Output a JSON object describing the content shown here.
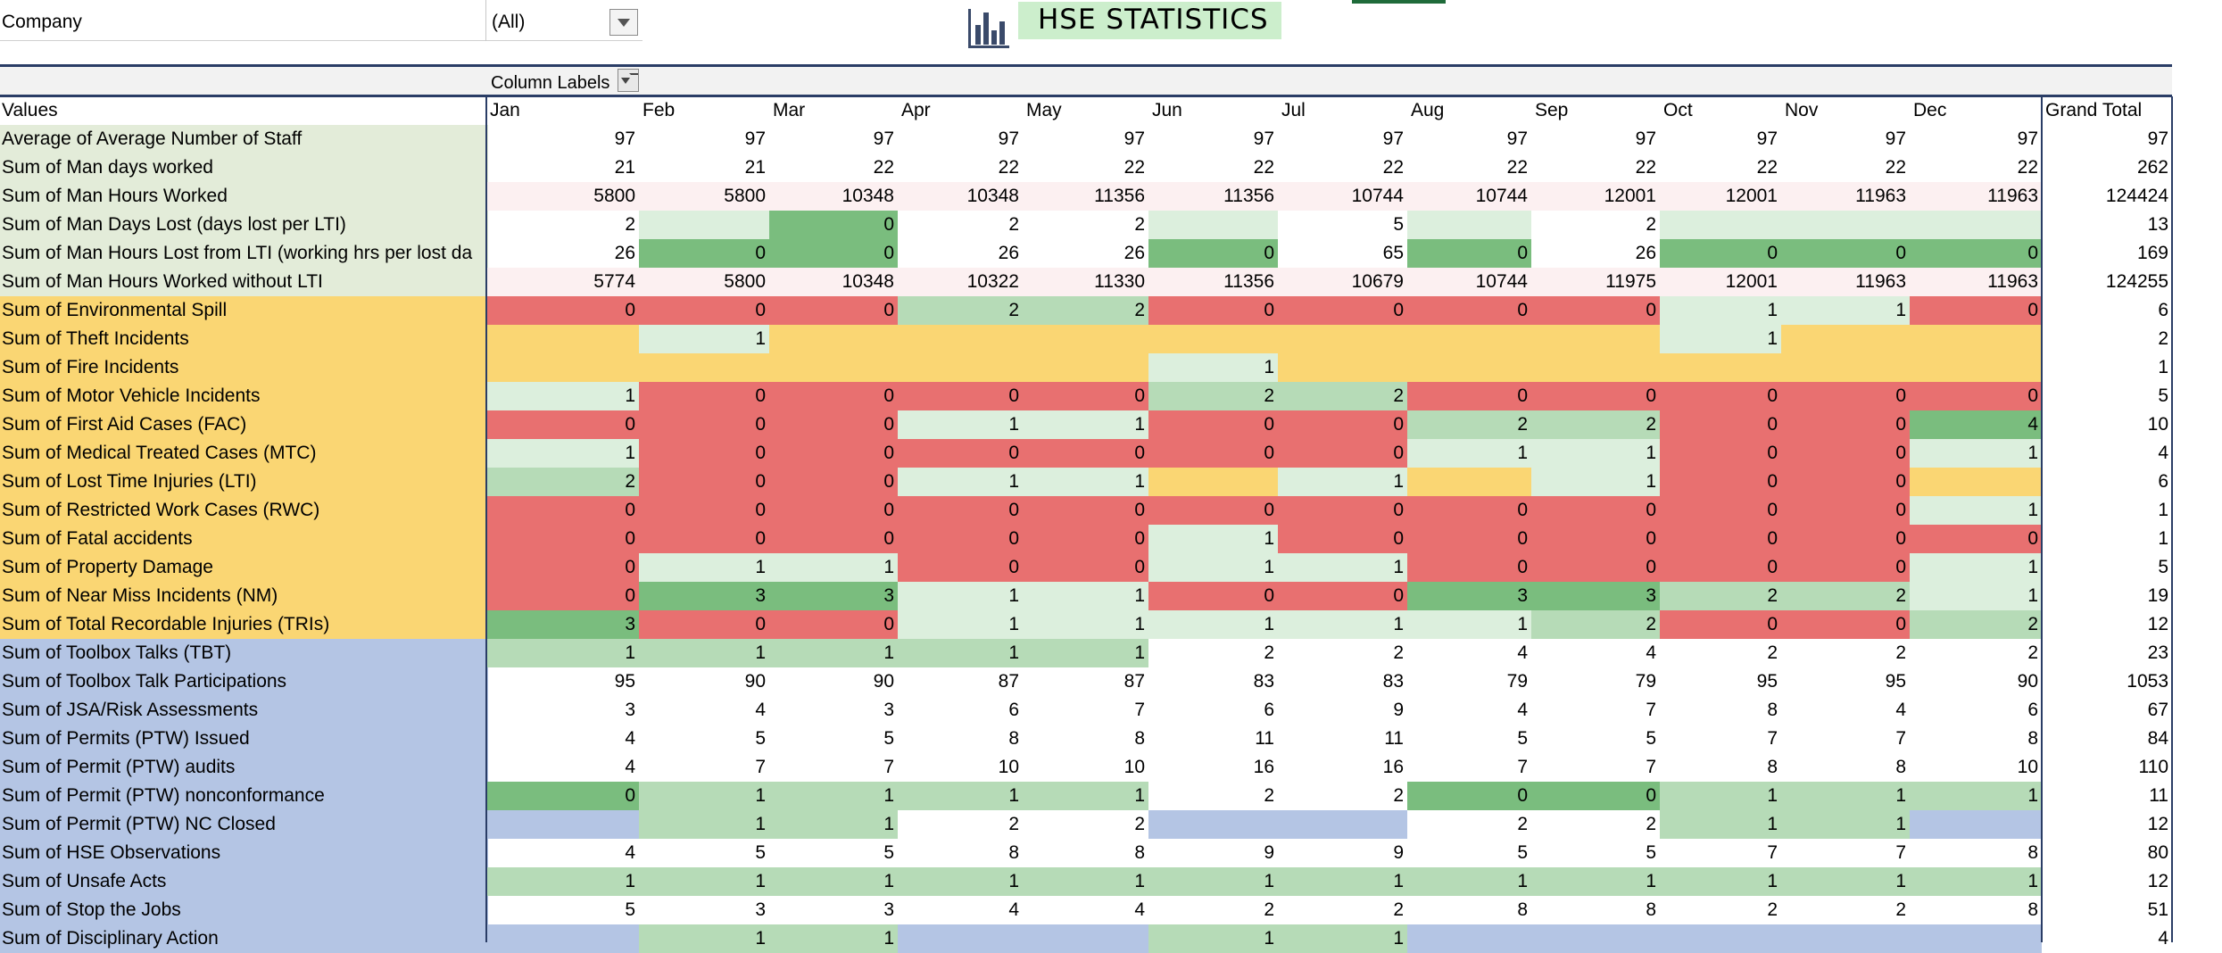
{
  "filter": {
    "label": "Company",
    "value": "(All)"
  },
  "title": "HSE STATISTICS",
  "column_labels": "Column Labels",
  "values_header": "Values",
  "months": [
    "Jan",
    "Feb",
    "Mar",
    "Apr",
    "May",
    "Jun",
    "Jul",
    "Aug",
    "Sep",
    "Oct",
    "Nov",
    "Dec"
  ],
  "grand_total_header": "Grand Total",
  "colors": {
    "green_dark": "#7abd7e",
    "green_mid": "#b6dbb7",
    "green_light": "#dcefdd",
    "red": "#e87070",
    "yellow": "#fad673",
    "blue": "#b4c5e4",
    "pink": "#fcf0f1",
    "lightgreen_label": "#e3ecd9"
  },
  "rows": [
    {
      "label": "Average of Average Number of Staff",
      "group": "green",
      "values": [
        "97",
        "97",
        "97",
        "97",
        "97",
        "97",
        "97",
        "97",
        "97",
        "97",
        "97",
        "97"
      ],
      "colors": [
        "",
        "",
        "",
        "",
        "",
        "",
        "",
        "",
        "",
        "",
        "",
        ""
      ],
      "total": "97"
    },
    {
      "label": "Sum of Man days worked",
      "group": "green",
      "values": [
        "21",
        "21",
        "22",
        "22",
        "22",
        "22",
        "22",
        "22",
        "22",
        "22",
        "22",
        "22"
      ],
      "colors": [
        "",
        "",
        "",
        "",
        "",
        "",
        "",
        "",
        "",
        "",
        "",
        ""
      ],
      "total": "262"
    },
    {
      "label": "Sum of Man Hours Worked",
      "group": "green",
      "values": [
        "5800",
        "5800",
        "10348",
        "10348",
        "11356",
        "11356",
        "10744",
        "10744",
        "12001",
        "12001",
        "11963",
        "11963"
      ],
      "colors": [
        "pink",
        "pink",
        "pink",
        "pink",
        "pink",
        "pink",
        "pink",
        "pink",
        "pink",
        "pink",
        "pink",
        "pink"
      ],
      "total": "124424"
    },
    {
      "label": "Sum of Man Days Lost (days lost per LTI)",
      "group": "green",
      "values": [
        "2",
        "",
        "0",
        "2",
        "2",
        "",
        "5",
        "",
        "2",
        "",
        "",
        ""
      ],
      "colors": [
        "",
        "green_light",
        "green_dark",
        "",
        "",
        "green_light",
        "",
        "green_light",
        "",
        "green_light",
        "green_light",
        "green_light"
      ],
      "total": "13"
    },
    {
      "label": "Sum of Man Hours Lost from LTI (working hrs per lost da",
      "group": "green",
      "values": [
        "26",
        "0",
        "0",
        "26",
        "26",
        "0",
        "65",
        "0",
        "26",
        "0",
        "0",
        "0"
      ],
      "colors": [
        "",
        "green_dark",
        "green_dark",
        "",
        "",
        "green_dark",
        "",
        "green_dark",
        "",
        "green_dark",
        "green_dark",
        "green_dark"
      ],
      "total": "169"
    },
    {
      "label": "Sum of Man Hours Worked without LTI",
      "group": "green",
      "values": [
        "5774",
        "5800",
        "10348",
        "10322",
        "11330",
        "11356",
        "10679",
        "10744",
        "11975",
        "12001",
        "11963",
        "11963"
      ],
      "colors": [
        "pink",
        "pink",
        "pink",
        "pink",
        "pink",
        "pink",
        "pink",
        "pink",
        "pink",
        "pink",
        "pink",
        "pink"
      ],
      "total": "124255"
    },
    {
      "label": "Sum of Environmental Spill",
      "group": "yellow",
      "values": [
        "0",
        "0",
        "0",
        "2",
        "2",
        "0",
        "0",
        "0",
        "0",
        "1",
        "1",
        "0"
      ],
      "colors": [
        "red",
        "red",
        "red",
        "green_mid",
        "green_mid",
        "red",
        "red",
        "red",
        "red",
        "green_light",
        "green_light",
        "red"
      ],
      "total": "6"
    },
    {
      "label": "Sum of Theft Incidents",
      "group": "yellow",
      "values": [
        "",
        "1",
        "",
        "",
        "",
        "",
        "",
        "",
        "",
        "1",
        "",
        ""
      ],
      "colors": [
        "yellow",
        "green_light",
        "yellow",
        "yellow",
        "yellow",
        "yellow",
        "yellow",
        "yellow",
        "yellow",
        "green_light",
        "yellow",
        "yellow"
      ],
      "total": "2"
    },
    {
      "label": "Sum of Fire Incidents",
      "group": "yellow",
      "values": [
        "",
        "",
        "",
        "",
        "",
        "1",
        "",
        "",
        "",
        "",
        "",
        ""
      ],
      "colors": [
        "yellow",
        "yellow",
        "yellow",
        "yellow",
        "yellow",
        "green_light",
        "yellow",
        "yellow",
        "yellow",
        "yellow",
        "yellow",
        "yellow"
      ],
      "total": "1"
    },
    {
      "label": "Sum of Motor Vehicle Incidents",
      "group": "yellow",
      "values": [
        "1",
        "0",
        "0",
        "0",
        "0",
        "2",
        "2",
        "0",
        "0",
        "0",
        "0",
        "0"
      ],
      "colors": [
        "green_light",
        "red",
        "red",
        "red",
        "red",
        "green_mid",
        "green_mid",
        "red",
        "red",
        "red",
        "red",
        "red"
      ],
      "total": "5"
    },
    {
      "label": "Sum of  First Aid Cases (FAC)",
      "group": "yellow",
      "values": [
        "0",
        "0",
        "0",
        "1",
        "1",
        "0",
        "0",
        "2",
        "2",
        "0",
        "0",
        "4"
      ],
      "colors": [
        "red",
        "red",
        "red",
        "green_light",
        "green_light",
        "red",
        "red",
        "green_mid",
        "green_mid",
        "red",
        "red",
        "green_dark"
      ],
      "total": "10"
    },
    {
      "label": "Sum of Medical Treated Cases (MTC)",
      "group": "yellow",
      "values": [
        "1",
        "0",
        "0",
        "0",
        "0",
        "0",
        "0",
        "1",
        "1",
        "0",
        "0",
        "1"
      ],
      "colors": [
        "green_light",
        "red",
        "red",
        "red",
        "red",
        "red",
        "red",
        "green_light",
        "green_light",
        "red",
        "red",
        "green_light"
      ],
      "total": "4"
    },
    {
      "label": "Sum of Lost Time Injuries  (LTI)",
      "group": "yellow",
      "values": [
        "2",
        "0",
        "0",
        "1",
        "1",
        "",
        "1",
        "",
        "1",
        "0",
        "0",
        ""
      ],
      "colors": [
        "green_mid",
        "red",
        "red",
        "green_light",
        "green_light",
        "yellow",
        "green_light",
        "yellow",
        "green_light",
        "red",
        "red",
        "yellow"
      ],
      "total": "6"
    },
    {
      "label": "Sum of Restricted Work Cases (RWC)",
      "group": "yellow",
      "values": [
        "0",
        "0",
        "0",
        "0",
        "0",
        "0",
        "0",
        "0",
        "0",
        "0",
        "0",
        "1"
      ],
      "colors": [
        "red",
        "red",
        "red",
        "red",
        "red",
        "red",
        "red",
        "red",
        "red",
        "red",
        "red",
        "green_light"
      ],
      "total": "1"
    },
    {
      "label": "Sum of Fatal accidents",
      "group": "yellow",
      "values": [
        "0",
        "0",
        "0",
        "0",
        "0",
        "1",
        "0",
        "0",
        "0",
        "0",
        "0",
        "0"
      ],
      "colors": [
        "red",
        "red",
        "red",
        "red",
        "red",
        "green_light",
        "red",
        "red",
        "red",
        "red",
        "red",
        "red"
      ],
      "total": "1"
    },
    {
      "label": "Sum of Property Damage",
      "group": "yellow",
      "values": [
        "0",
        "1",
        "1",
        "0",
        "0",
        "1",
        "1",
        "0",
        "0",
        "0",
        "0",
        "1"
      ],
      "colors": [
        "red",
        "green_light",
        "green_light",
        "red",
        "red",
        "green_light",
        "green_light",
        "red",
        "red",
        "red",
        "red",
        "green_light"
      ],
      "total": "5"
    },
    {
      "label": "Sum of Near Miss Incidents (NM)",
      "group": "yellow",
      "values": [
        "0",
        "3",
        "3",
        "1",
        "1",
        "0",
        "0",
        "3",
        "3",
        "2",
        "2",
        "1"
      ],
      "colors": [
        "red",
        "green_dark",
        "green_dark",
        "green_light",
        "green_light",
        "red",
        "red",
        "green_dark",
        "green_dark",
        "green_mid",
        "green_mid",
        "green_light"
      ],
      "total": "19"
    },
    {
      "label": "Sum of Total Recordable Injuries (TRIs)",
      "group": "yellow",
      "values": [
        "3",
        "0",
        "0",
        "1",
        "1",
        "1",
        "1",
        "1",
        "2",
        "0",
        "0",
        "2"
      ],
      "colors": [
        "green_dark",
        "red",
        "red",
        "green_light",
        "green_light",
        "green_light",
        "green_light",
        "green_light",
        "green_mid",
        "red",
        "red",
        "green_mid"
      ],
      "total": "12"
    },
    {
      "label": "Sum of Toolbox Talks (TBT)",
      "group": "blue",
      "values": [
        "1",
        "1",
        "1",
        "1",
        "1",
        "2",
        "2",
        "4",
        "4",
        "2",
        "2",
        "2"
      ],
      "colors": [
        "green_mid",
        "green_mid",
        "green_mid",
        "green_mid",
        "green_mid",
        "",
        "",
        "",
        "",
        "",
        "",
        ""
      ],
      "total": "23"
    },
    {
      "label": "Sum of Toolbox Talk Participations",
      "group": "blue",
      "values": [
        "95",
        "90",
        "90",
        "87",
        "87",
        "83",
        "83",
        "79",
        "79",
        "95",
        "95",
        "90"
      ],
      "colors": [
        "",
        "",
        "",
        "",
        "",
        "",
        "",
        "",
        "",
        "",
        "",
        ""
      ],
      "total": "1053"
    },
    {
      "label": "Sum of JSA/Risk Assessments",
      "group": "blue",
      "values": [
        "3",
        "4",
        "3",
        "6",
        "7",
        "6",
        "9",
        "4",
        "7",
        "8",
        "4",
        "6"
      ],
      "colors": [
        "",
        "",
        "",
        "",
        "",
        "",
        "",
        "",
        "",
        "",
        "",
        ""
      ],
      "total": "67"
    },
    {
      "label": "Sum of Permits (PTW) Issued",
      "group": "blue",
      "values": [
        "4",
        "5",
        "5",
        "8",
        "8",
        "11",
        "11",
        "5",
        "5",
        "7",
        "7",
        "8"
      ],
      "colors": [
        "",
        "",
        "",
        "",
        "",
        "",
        "",
        "",
        "",
        "",
        "",
        ""
      ],
      "total": "84"
    },
    {
      "label": "Sum of Permit (PTW) audits",
      "group": "blue",
      "values": [
        "4",
        "7",
        "7",
        "10",
        "10",
        "16",
        "16",
        "7",
        "7",
        "8",
        "8",
        "10"
      ],
      "colors": [
        "",
        "",
        "",
        "",
        "",
        "",
        "",
        "",
        "",
        "",
        "",
        ""
      ],
      "total": "110"
    },
    {
      "label": "Sum of Permit (PTW) nonconformance",
      "group": "blue",
      "values": [
        "0",
        "1",
        "1",
        "1",
        "1",
        "2",
        "2",
        "0",
        "0",
        "1",
        "1",
        "1"
      ],
      "colors": [
        "green_dark",
        "green_mid",
        "green_mid",
        "green_mid",
        "green_mid",
        "",
        "",
        "green_dark",
        "green_dark",
        "green_mid",
        "green_mid",
        "green_mid"
      ],
      "total": "11"
    },
    {
      "label": "Sum of Permit (PTW) NC Closed",
      "group": "blue",
      "values": [
        "",
        "1",
        "1",
        "2",
        "2",
        "",
        "",
        "2",
        "2",
        "1",
        "1",
        ""
      ],
      "colors": [
        "blue",
        "green_mid",
        "green_mid",
        "",
        "",
        "blue",
        "blue",
        "",
        "",
        "green_mid",
        "green_mid",
        "blue"
      ],
      "total": "12"
    },
    {
      "label": "Sum of HSE Observations",
      "group": "blue",
      "values": [
        "4",
        "5",
        "5",
        "8",
        "8",
        "9",
        "9",
        "5",
        "5",
        "7",
        "7",
        "8"
      ],
      "colors": [
        "",
        "",
        "",
        "",
        "",
        "",
        "",
        "",
        "",
        "",
        "",
        ""
      ],
      "total": "80"
    },
    {
      "label": "Sum of Unsafe Acts",
      "group": "blue",
      "values": [
        "1",
        "1",
        "1",
        "1",
        "1",
        "1",
        "1",
        "1",
        "1",
        "1",
        "1",
        "1"
      ],
      "colors": [
        "green_mid",
        "green_mid",
        "green_mid",
        "green_mid",
        "green_mid",
        "green_mid",
        "green_mid",
        "green_mid",
        "green_mid",
        "green_mid",
        "green_mid",
        "green_mid"
      ],
      "total": "12"
    },
    {
      "label": "Sum of Stop the Jobs",
      "group": "blue",
      "values": [
        "5",
        "3",
        "3",
        "4",
        "4",
        "2",
        "2",
        "8",
        "8",
        "2",
        "2",
        "8"
      ],
      "colors": [
        "",
        "",
        "",
        "",
        "",
        "",
        "",
        "",
        "",
        "",
        "",
        ""
      ],
      "total": "51"
    },
    {
      "label": "Sum of Disciplinary Action",
      "group": "blue",
      "values": [
        "",
        "1",
        "1",
        "",
        "",
        "1",
        "1",
        "",
        "",
        "",
        "",
        ""
      ],
      "colors": [
        "blue",
        "green_mid",
        "green_mid",
        "blue",
        "blue",
        "green_mid",
        "green_mid",
        "blue",
        "blue",
        "blue",
        "blue",
        "blue"
      ],
      "total": "4"
    }
  ]
}
